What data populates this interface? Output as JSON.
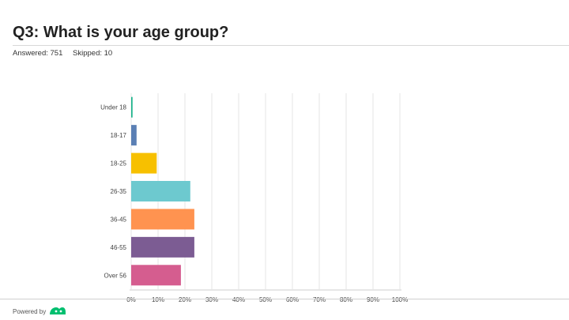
{
  "question": {
    "title": "Q3: What is your age group?",
    "answered": "Answered: 751",
    "skipped": "Skipped: 10"
  },
  "footer": {
    "powered_by": "Powered by",
    "logo_icon": "surveymonkey-logo-icon"
  },
  "colors": {
    "grid": "#e6e6e6",
    "axis_text": "#444444"
  },
  "chart_data": {
    "type": "bar",
    "orientation": "horizontal",
    "categories": [
      "Under 18",
      "18-17",
      "18-25",
      "26-35",
      "36-45",
      "46-55",
      "Over 56"
    ],
    "values": [
      0.5,
      2,
      9.5,
      22,
      23.5,
      23.5,
      18.5
    ],
    "colors": [
      "#1ab28a",
      "#5a7fb4",
      "#f7c000",
      "#6dc9cf",
      "#ff9350",
      "#7c5c93",
      "#d55d8f"
    ],
    "xlim": [
      0,
      100
    ],
    "xticks": [
      0,
      10,
      20,
      30,
      40,
      50,
      60,
      70,
      80,
      90,
      100
    ],
    "xtick_labels": [
      "0%",
      "10%",
      "20%",
      "30%",
      "40%",
      "50%",
      "60%",
      "70%",
      "80%",
      "90%",
      "100%"
    ],
    "grid": true,
    "title": "",
    "xlabel": "",
    "ylabel": ""
  }
}
